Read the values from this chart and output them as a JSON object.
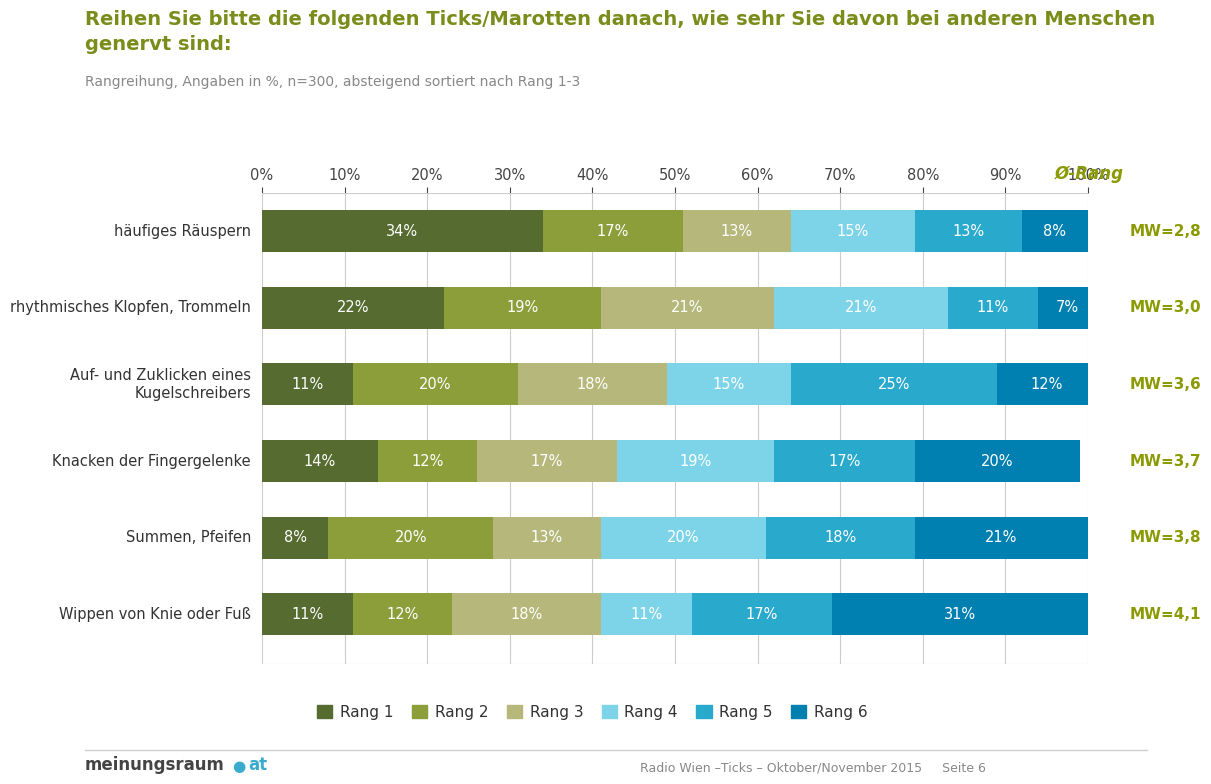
{
  "title_main": "Reihen Sie bitte die folgenden Ticks/Marotten danach, wie sehr Sie davon bei anderen Menschen\ngenervt sind:",
  "title_sub": "Rangreihung, Angaben in %, n=300, absteigend sortiert nach Rang 1-3",
  "oe_rang_label": "Ø-Rang",
  "categories": [
    "häufiges Räuspern",
    "rhythmisches Klopfen, Trommeln",
    "Auf- und Zuklicken eines\nKugelschreibers",
    "Knacken der Fingergelenke",
    "Summen, Pfeifen",
    "Wippen von Knie oder Fuß"
  ],
  "mw_labels": [
    "MW=2,8",
    "MW=3,0",
    "MW=3,6",
    "MW=3,7",
    "MW=3,8",
    "MW=4,1"
  ],
  "data": [
    [
      34,
      17,
      13,
      15,
      13,
      8
    ],
    [
      22,
      19,
      21,
      21,
      11,
      7
    ],
    [
      11,
      20,
      18,
      15,
      25,
      12
    ],
    [
      14,
      12,
      17,
      19,
      17,
      20
    ],
    [
      8,
      20,
      13,
      20,
      18,
      21
    ],
    [
      11,
      12,
      18,
      11,
      17,
      31
    ]
  ],
  "colors": [
    "#556b2f",
    "#8b9e3a",
    "#b5b87a",
    "#7dd4e8",
    "#29a9cc",
    "#0080b0"
  ],
  "legend_labels": [
    "Rang 1",
    "Rang 2",
    "Rang 3",
    "Rang 4",
    "Rang 5",
    "Rang 6"
  ],
  "bar_height": 0.55,
  "xlim": [
    0,
    100
  ],
  "title_color": "#7a8c1a",
  "sub_color": "#888888",
  "mw_color": "#8b9a00",
  "text_color_light": "#ffffff",
  "footer_right": "Radio Wien –Ticks – Oktober/November 2015     Seite 6",
  "background_color": "#ffffff"
}
